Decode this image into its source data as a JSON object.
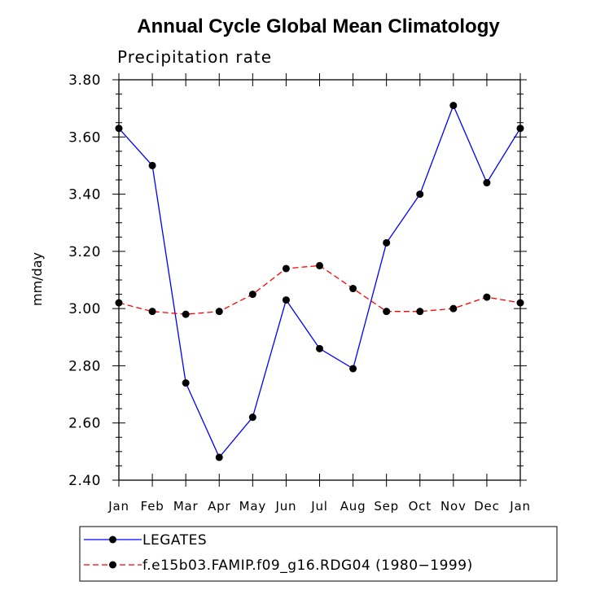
{
  "chart_data": {
    "type": "line",
    "title": "Annual Cycle Global Mean Climatology",
    "subtitle": "Precipitation rate",
    "xlabel": "",
    "ylabel": "mm/day",
    "categories": [
      "Jan",
      "Feb",
      "Mar",
      "Apr",
      "May",
      "Jun",
      "Jul",
      "Aug",
      "Sep",
      "Oct",
      "Nov",
      "Dec",
      "Jan"
    ],
    "ylim": [
      2.4,
      3.8
    ],
    "yticks": [
      "2.40",
      "2.60",
      "2.80",
      "3.00",
      "3.20",
      "3.40",
      "3.60",
      "3.80"
    ],
    "ytick_values": [
      2.4,
      2.6,
      2.8,
      3.0,
      3.2,
      3.4,
      3.6,
      3.8
    ],
    "grid": false,
    "legend_position": "bottom-left",
    "series": [
      {
        "name": "LEGATES",
        "color": "#0000ff",
        "style": "solid",
        "marker": "dot",
        "values": [
          3.63,
          3.5,
          2.74,
          2.48,
          2.62,
          3.03,
          2.86,
          2.79,
          3.23,
          3.4,
          3.71,
          3.44,
          3.63
        ]
      },
      {
        "name": "f.e15b03.FAMIP.f09_g16.RDG04 (1980−1999)",
        "color": "#ff0000",
        "style": "dashed",
        "marker": "dot",
        "values": [
          3.02,
          2.99,
          2.98,
          2.99,
          3.05,
          3.14,
          3.15,
          3.07,
          2.99,
          2.99,
          3.0,
          3.04,
          3.02
        ]
      }
    ]
  }
}
